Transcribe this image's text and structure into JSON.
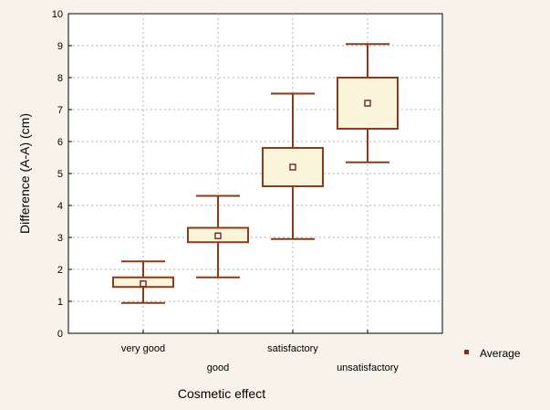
{
  "chart_data": {
    "type": "boxplot",
    "xlabel": "Cosmetic effect",
    "ylabel": "Difference (A-A) (cm)",
    "ylim": [
      0,
      10
    ],
    "yticks": [
      0,
      1,
      2,
      3,
      4,
      5,
      6,
      7,
      8,
      9,
      10
    ],
    "grid": true,
    "categories": [
      "very good",
      "good",
      "satisfactory",
      "unsatisfactory"
    ],
    "boxes": [
      {
        "category": "very good",
        "whisker_low": 0.95,
        "box_low": 1.45,
        "mean": 1.55,
        "box_high": 1.75,
        "whisker_high": 2.25
      },
      {
        "category": "good",
        "whisker_low": 1.75,
        "box_low": 2.85,
        "mean": 3.05,
        "box_high": 3.3,
        "whisker_high": 4.3
      },
      {
        "category": "satisfactory",
        "whisker_low": 2.95,
        "box_low": 4.6,
        "mean": 5.2,
        "box_high": 5.8,
        "whisker_high": 7.5
      },
      {
        "category": "unsatisfactory",
        "whisker_low": 5.35,
        "box_low": 6.4,
        "mean": 7.2,
        "box_high": 8.0,
        "whisker_high": 9.05
      }
    ],
    "legend": {
      "entries": [
        "Average"
      ],
      "placement": "right"
    },
    "colors": {
      "box_fill": "#fbf5dc",
      "stroke": "#8b3a1a",
      "mean_marker": "#8b2a1a",
      "grid": "#b0b0b0",
      "background": "#f7f3ea",
      "plot_background": "#ffffff"
    }
  }
}
